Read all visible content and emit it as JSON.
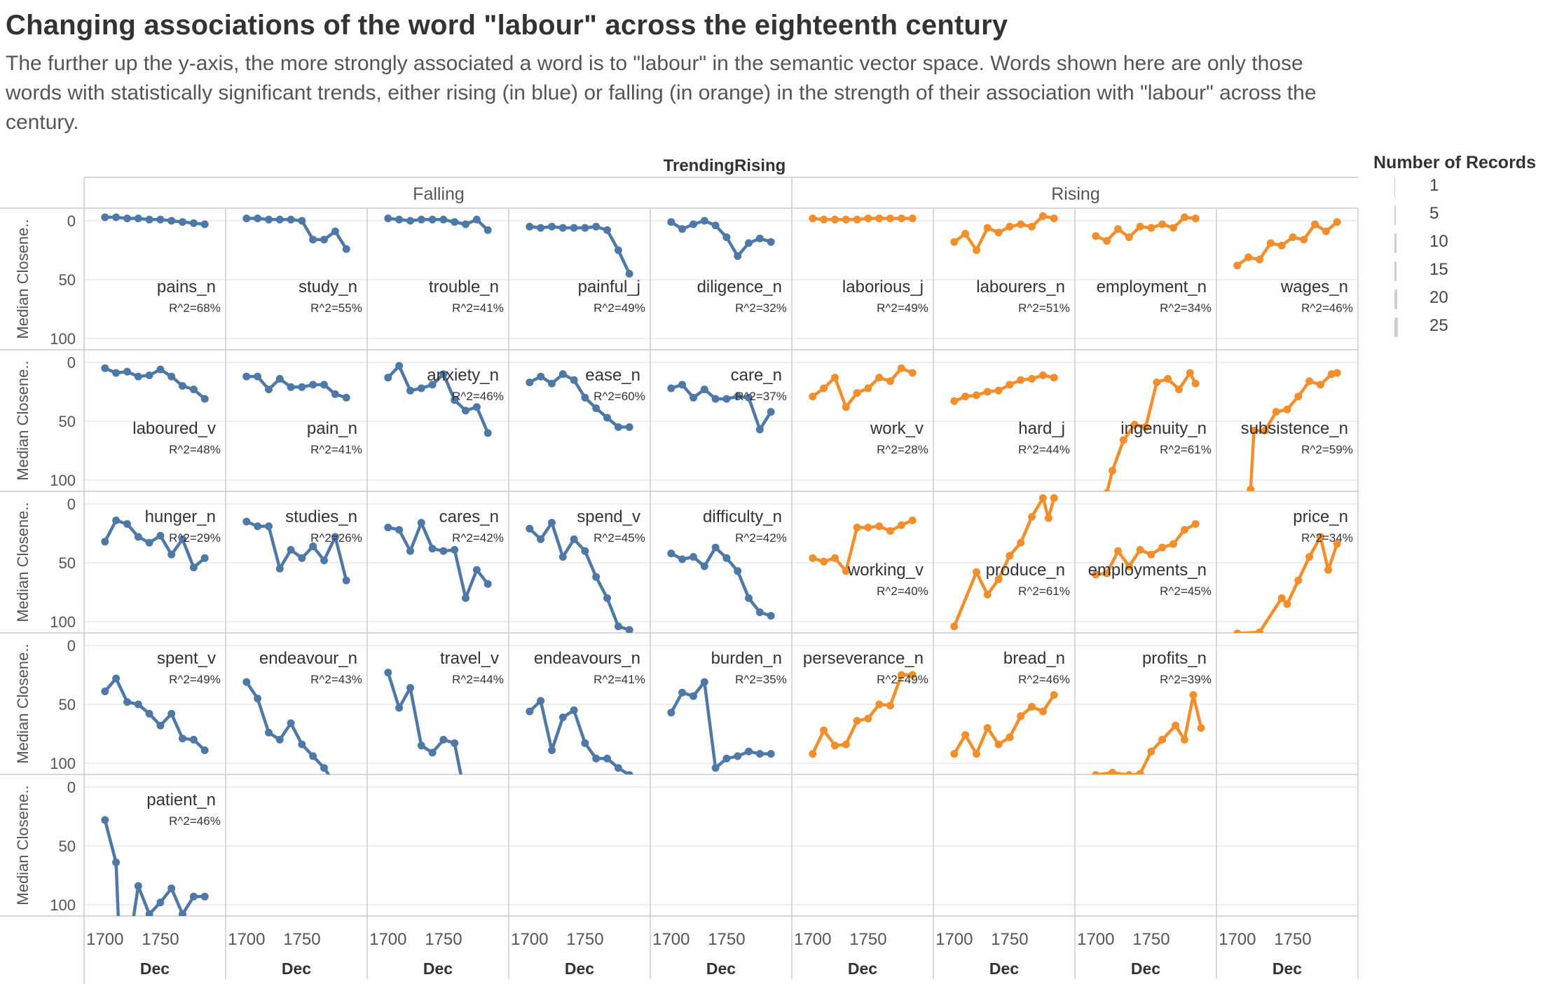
{
  "title": "Changing associations of the word \"labour\" across the eighteenth century",
  "subtitle": "The further up the y-axis, the more strongly associated a word is to \"labour\" in the semantic vector space. Words shown here are only those words with statistically significant trends, either rising (in blue) or falling (in orange) in the strength of their association with \"labour\" across the century.",
  "legend": {
    "title": "Number of Records",
    "items": [
      {
        "label": "1",
        "value": 1
      },
      {
        "label": "5",
        "value": 5
      },
      {
        "label": "10",
        "value": 10
      },
      {
        "label": "15",
        "value": 15
      },
      {
        "label": "20",
        "value": 20
      },
      {
        "label": "25",
        "value": 25
      }
    ]
  },
  "colors": {
    "falling": "#4e79a7",
    "rising": "#f28e2b",
    "grid": "#e8e8e8",
    "border": "#cccccc"
  },
  "chart_data": {
    "type": "line",
    "header": "TrendingRising",
    "groups": [
      "Falling",
      "Rising"
    ],
    "xlabel": "Dec",
    "ylabel": "Median Closene..",
    "xticks": [
      "1700",
      "1750"
    ],
    "yticks": [
      "0",
      "50",
      "100"
    ],
    "xlim": [
      1690,
      1800
    ],
    "ylim": [
      0,
      100
    ],
    "y_reversed": true,
    "panels": [
      {
        "word": "pains_n",
        "r2": "R^2=68%",
        "group": "Falling",
        "row": 0,
        "col": 0,
        "x": [
          1700,
          1710,
          1720,
          1730,
          1740,
          1750,
          1760,
          1770,
          1780,
          1790
        ],
        "y": [
          -3,
          -3,
          -2,
          -2,
          -1,
          -1,
          0,
          1,
          2,
          3
        ]
      },
      {
        "word": "study_n",
        "r2": "R^2=55%",
        "group": "Falling",
        "row": 0,
        "col": 1,
        "x": [
          1700,
          1710,
          1720,
          1730,
          1740,
          1750,
          1760,
          1770,
          1780,
          1790
        ],
        "y": [
          -2,
          -2,
          -1,
          -1,
          -1,
          0,
          16,
          16,
          9,
          24
        ]
      },
      {
        "word": "trouble_n",
        "r2": "R^2=41%",
        "group": "Falling",
        "row": 0,
        "col": 2,
        "x": [
          1700,
          1710,
          1720,
          1730,
          1740,
          1750,
          1760,
          1770,
          1780,
          1790
        ],
        "y": [
          -2,
          -1,
          0,
          -1,
          -1,
          -1,
          1,
          3,
          -1,
          8
        ]
      },
      {
        "word": "painful_j",
        "r2": "R^2=49%",
        "group": "Falling",
        "row": 0,
        "col": 3,
        "x": [
          1700,
          1710,
          1720,
          1730,
          1740,
          1750,
          1760,
          1770,
          1780,
          1790
        ],
        "y": [
          5,
          6,
          5,
          6,
          6,
          6,
          5,
          8,
          25,
          45
        ]
      },
      {
        "word": "diligence_n",
        "r2": "R^2=32%",
        "group": "Falling",
        "row": 0,
        "col": 4,
        "x": [
          1700,
          1710,
          1720,
          1730,
          1740,
          1750,
          1760,
          1770,
          1780,
          1790
        ],
        "y": [
          1,
          7,
          3,
          0,
          4,
          14,
          30,
          19,
          15,
          18
        ]
      },
      {
        "word": "laborious_j",
        "r2": "R^2=49%",
        "group": "Rising",
        "row": 0,
        "col": 5,
        "x": [
          1700,
          1710,
          1720,
          1730,
          1740,
          1750,
          1760,
          1770,
          1780,
          1790
        ],
        "y": [
          -2,
          -1,
          -1,
          -1,
          -1,
          -2,
          -2,
          -2,
          -2,
          -2
        ]
      },
      {
        "word": "labourers_n",
        "r2": "R^2=51%",
        "group": "Rising",
        "row": 0,
        "col": 6,
        "x": [
          1700,
          1710,
          1720,
          1730,
          1740,
          1750,
          1760,
          1770,
          1780,
          1790
        ],
        "y": [
          18,
          11,
          25,
          6,
          10,
          5,
          3,
          5,
          -4,
          -2
        ]
      },
      {
        "word": "employment_n",
        "r2": "R^2=34%",
        "group": "Rising",
        "row": 0,
        "col": 7,
        "x": [
          1700,
          1710,
          1720,
          1730,
          1740,
          1750,
          1760,
          1770,
          1780,
          1790
        ],
        "y": [
          13,
          17,
          7,
          14,
          5,
          6,
          3,
          6,
          -3,
          -2
        ]
      },
      {
        "word": "wages_n",
        "r2": "R^2=46%",
        "group": "Rising",
        "row": 0,
        "col": 8,
        "x": [
          1700,
          1710,
          1720,
          1730,
          1740,
          1750,
          1760,
          1770,
          1780,
          1790
        ],
        "y": [
          38,
          31,
          33,
          19,
          21,
          14,
          16,
          3,
          9,
          1
        ]
      },
      {
        "word": "laboured_v",
        "r2": "R^2=48%",
        "group": "Falling",
        "row": 1,
        "col": 0,
        "x": [
          1700,
          1710,
          1720,
          1730,
          1740,
          1750,
          1760,
          1770,
          1780,
          1790
        ],
        "y": [
          5,
          9,
          8,
          12,
          11,
          6,
          12,
          20,
          23,
          31
        ]
      },
      {
        "word": "pain_n",
        "r2": "R^2=41%",
        "group": "Falling",
        "row": 1,
        "col": 1,
        "x": [
          1700,
          1710,
          1720,
          1730,
          1740,
          1750,
          1760,
          1770,
          1780,
          1790
        ],
        "y": [
          12,
          12,
          23,
          14,
          21,
          21,
          19,
          19,
          27,
          30
        ]
      },
      {
        "word": "anxiety_n",
        "r2": "R^2=46%",
        "group": "Falling",
        "row": 1,
        "col": 2,
        "x": [
          1700,
          1710,
          1720,
          1730,
          1740,
          1750,
          1760,
          1770,
          1780,
          1790
        ],
        "y": [
          13,
          3,
          24,
          22,
          19,
          10,
          32,
          41,
          38,
          60
        ]
      },
      {
        "word": "ease_n",
        "r2": "R^2=60%",
        "group": "Falling",
        "row": 1,
        "col": 3,
        "x": [
          1700,
          1710,
          1720,
          1730,
          1740,
          1750,
          1760,
          1770,
          1780,
          1790
        ],
        "y": [
          17,
          12,
          18,
          10,
          15,
          30,
          39,
          47,
          55,
          55
        ]
      },
      {
        "word": "care_n",
        "r2": "R^2=37%",
        "group": "Falling",
        "row": 1,
        "col": 4,
        "x": [
          1700,
          1710,
          1720,
          1730,
          1740,
          1750,
          1760,
          1770,
          1780,
          1790
        ],
        "y": [
          22,
          19,
          30,
          23,
          31,
          31,
          29,
          30,
          57,
          42
        ]
      },
      {
        "word": "work_v",
        "r2": "R^2=28%",
        "group": "Rising",
        "row": 1,
        "col": 5,
        "x": [
          1700,
          1710,
          1720,
          1730,
          1740,
          1750,
          1760,
          1770,
          1780,
          1790
        ],
        "y": [
          29,
          22,
          13,
          38,
          26,
          22,
          13,
          16,
          5,
          9
        ]
      },
      {
        "word": "hard_j",
        "r2": "R^2=44%",
        "group": "Rising",
        "row": 1,
        "col": 6,
        "x": [
          1700,
          1710,
          1720,
          1730,
          1740,
          1750,
          1760,
          1770,
          1780,
          1790
        ],
        "y": [
          33,
          29,
          28,
          25,
          24,
          19,
          15,
          14,
          11,
          13
        ]
      },
      {
        "word": "ingenuity_n",
        "r2": "R^2=61%",
        "group": "Rising",
        "row": 1,
        "col": 7,
        "x": [
          1710,
          1715,
          1725,
          1735,
          1745,
          1755,
          1765,
          1775,
          1785,
          1790
        ],
        "y": [
          111,
          92,
          66,
          53,
          55,
          17,
          14,
          23,
          9,
          18
        ]
      },
      {
        "word": "subsistence_n",
        "r2": "R^2=59%",
        "group": "Rising",
        "row": 1,
        "col": 8,
        "x": [
          1712,
          1715,
          1725,
          1735,
          1745,
          1755,
          1765,
          1775,
          1785,
          1790
        ],
        "y": [
          108,
          58,
          58,
          42,
          40,
          29,
          16,
          19,
          10,
          9
        ]
      },
      {
        "word": "hunger_n",
        "r2": "R^2=29%",
        "group": "Falling",
        "row": 2,
        "col": 0,
        "x": [
          1700,
          1710,
          1720,
          1730,
          1740,
          1750,
          1760,
          1770,
          1780,
          1790
        ],
        "y": [
          32,
          14,
          17,
          28,
          33,
          27,
          43,
          30,
          54,
          46
        ]
      },
      {
        "word": "studies_n",
        "r2": "R^2=26%",
        "group": "Falling",
        "row": 2,
        "col": 1,
        "x": [
          1700,
          1710,
          1720,
          1730,
          1740,
          1750,
          1760,
          1770,
          1780,
          1790
        ],
        "y": [
          15,
          19,
          19,
          55,
          39,
          46,
          36,
          48,
          28,
          65
        ]
      },
      {
        "word": "cares_n",
        "r2": "R^2=42%",
        "group": "Falling",
        "row": 2,
        "col": 2,
        "x": [
          1700,
          1710,
          1720,
          1730,
          1740,
          1750,
          1760,
          1770,
          1780,
          1790
        ],
        "y": [
          20,
          22,
          40,
          16,
          38,
          40,
          39,
          80,
          56,
          68
        ]
      },
      {
        "word": "spend_v",
        "r2": "R^2=45%",
        "group": "Falling",
        "row": 2,
        "col": 3,
        "x": [
          1700,
          1710,
          1720,
          1730,
          1740,
          1750,
          1760,
          1770,
          1780,
          1790
        ],
        "y": [
          21,
          30,
          16,
          45,
          30,
          40,
          62,
          80,
          104,
          107
        ]
      },
      {
        "word": "difficulty_n",
        "r2": "R^2=42%",
        "group": "Falling",
        "row": 2,
        "col": 4,
        "x": [
          1700,
          1710,
          1720,
          1730,
          1740,
          1750,
          1760,
          1770,
          1780,
          1790
        ],
        "y": [
          42,
          47,
          45,
          53,
          37,
          46,
          57,
          80,
          92,
          95
        ]
      },
      {
        "word": "working_v",
        "r2": "R^2=40%",
        "group": "Rising",
        "row": 2,
        "col": 5,
        "x": [
          1700,
          1710,
          1720,
          1730,
          1740,
          1750,
          1760,
          1770,
          1780,
          1790
        ],
        "y": [
          46,
          49,
          46,
          57,
          20,
          20,
          19,
          23,
          18,
          14
        ]
      },
      {
        "word": "produce_n",
        "r2": "R^2=61%",
        "group": "Rising",
        "row": 2,
        "col": 6,
        "x": [
          1700,
          1720,
          1730,
          1740,
          1750,
          1760,
          1770,
          1780,
          1785,
          1790
        ],
        "y": [
          104,
          58,
          77,
          64,
          44,
          33,
          11,
          -5,
          12,
          -5
        ]
      },
      {
        "word": "employments_n",
        "r2": "R^2=45%",
        "group": "Rising",
        "row": 2,
        "col": 7,
        "x": [
          1700,
          1710,
          1720,
          1730,
          1740,
          1750,
          1760,
          1770,
          1780,
          1790
        ],
        "y": [
          60,
          59,
          40,
          53,
          39,
          43,
          37,
          34,
          22,
          17
        ]
      },
      {
        "word": "price_n",
        "r2": "R^2=34%",
        "group": "Rising",
        "row": 2,
        "col": 8,
        "x": [
          1700,
          1720,
          1740,
          1745,
          1755,
          1765,
          1775,
          1782,
          1790
        ],
        "y": [
          110,
          109,
          80,
          85,
          65,
          45,
          28,
          56,
          34
        ]
      },
      {
        "word": "spent_v",
        "r2": "R^2=49%",
        "group": "Falling",
        "row": 3,
        "col": 0,
        "x": [
          1700,
          1710,
          1720,
          1730,
          1740,
          1750,
          1760,
          1770,
          1780,
          1790
        ],
        "y": [
          39,
          28,
          48,
          50,
          58,
          68,
          58,
          79,
          80,
          89
        ]
      },
      {
        "word": "endeavour_n",
        "r2": "R^2=43%",
        "group": "Falling",
        "row": 3,
        "col": 1,
        "x": [
          1700,
          1710,
          1720,
          1730,
          1740,
          1750,
          1760,
          1770,
          1780,
          1790
        ],
        "y": [
          31,
          45,
          74,
          80,
          66,
          84,
          94,
          104,
          118,
          114
        ]
      },
      {
        "word": "travel_v",
        "r2": "R^2=44%",
        "group": "Falling",
        "row": 3,
        "col": 2,
        "x": [
          1700,
          1710,
          1720,
          1730,
          1740,
          1750,
          1760,
          1770
        ],
        "y": [
          23,
          53,
          36,
          85,
          91,
          80,
          83,
          130
        ]
      },
      {
        "word": "endeavours_n",
        "r2": "R^2=41%",
        "group": "Falling",
        "row": 3,
        "col": 3,
        "x": [
          1700,
          1710,
          1720,
          1730,
          1740,
          1750,
          1760,
          1770,
          1780,
          1790
        ],
        "y": [
          56,
          47,
          89,
          61,
          55,
          83,
          96,
          96,
          104,
          110
        ]
      },
      {
        "word": "burden_n",
        "r2": "R^2=35%",
        "group": "Falling",
        "row": 3,
        "col": 4,
        "x": [
          1700,
          1710,
          1720,
          1730,
          1740,
          1750,
          1760,
          1770,
          1780,
          1790
        ],
        "y": [
          57,
          40,
          43,
          31,
          104,
          96,
          94,
          90,
          92,
          92
        ]
      },
      {
        "word": "perseverance_n",
        "r2": "R^2=49%",
        "group": "Rising",
        "row": 3,
        "col": 5,
        "x": [
          1700,
          1710,
          1720,
          1730,
          1740,
          1750,
          1760,
          1770,
          1780,
          1790
        ],
        "y": [
          92,
          72,
          85,
          84,
          64,
          62,
          50,
          51,
          25,
          25
        ]
      },
      {
        "word": "bread_n",
        "r2": "R^2=46%",
        "group": "Rising",
        "row": 3,
        "col": 6,
        "x": [
          1700,
          1710,
          1720,
          1730,
          1740,
          1750,
          1760,
          1770,
          1780,
          1790
        ],
        "y": [
          92,
          76,
          92,
          70,
          84,
          78,
          60,
          52,
          56,
          42
        ]
      },
      {
        "word": "profits_n",
        "r2": "R^2=39%",
        "group": "Rising",
        "row": 3,
        "col": 7,
        "x": [
          1700,
          1715,
          1730,
          1740,
          1750,
          1760,
          1772,
          1780,
          1788,
          1795
        ],
        "y": [
          110,
          108,
          110,
          109,
          90,
          80,
          68,
          80,
          42,
          70
        ]
      },
      {
        "word": "patient_n",
        "r2": "R^2=46%",
        "group": "Falling",
        "row": 4,
        "col": 0,
        "x": [
          1700,
          1710,
          1715,
          1730,
          1740,
          1750,
          1760,
          1770,
          1780,
          1790
        ],
        "y": [
          28,
          64,
          178,
          84,
          108,
          98,
          86,
          108,
          93,
          93
        ]
      }
    ]
  }
}
